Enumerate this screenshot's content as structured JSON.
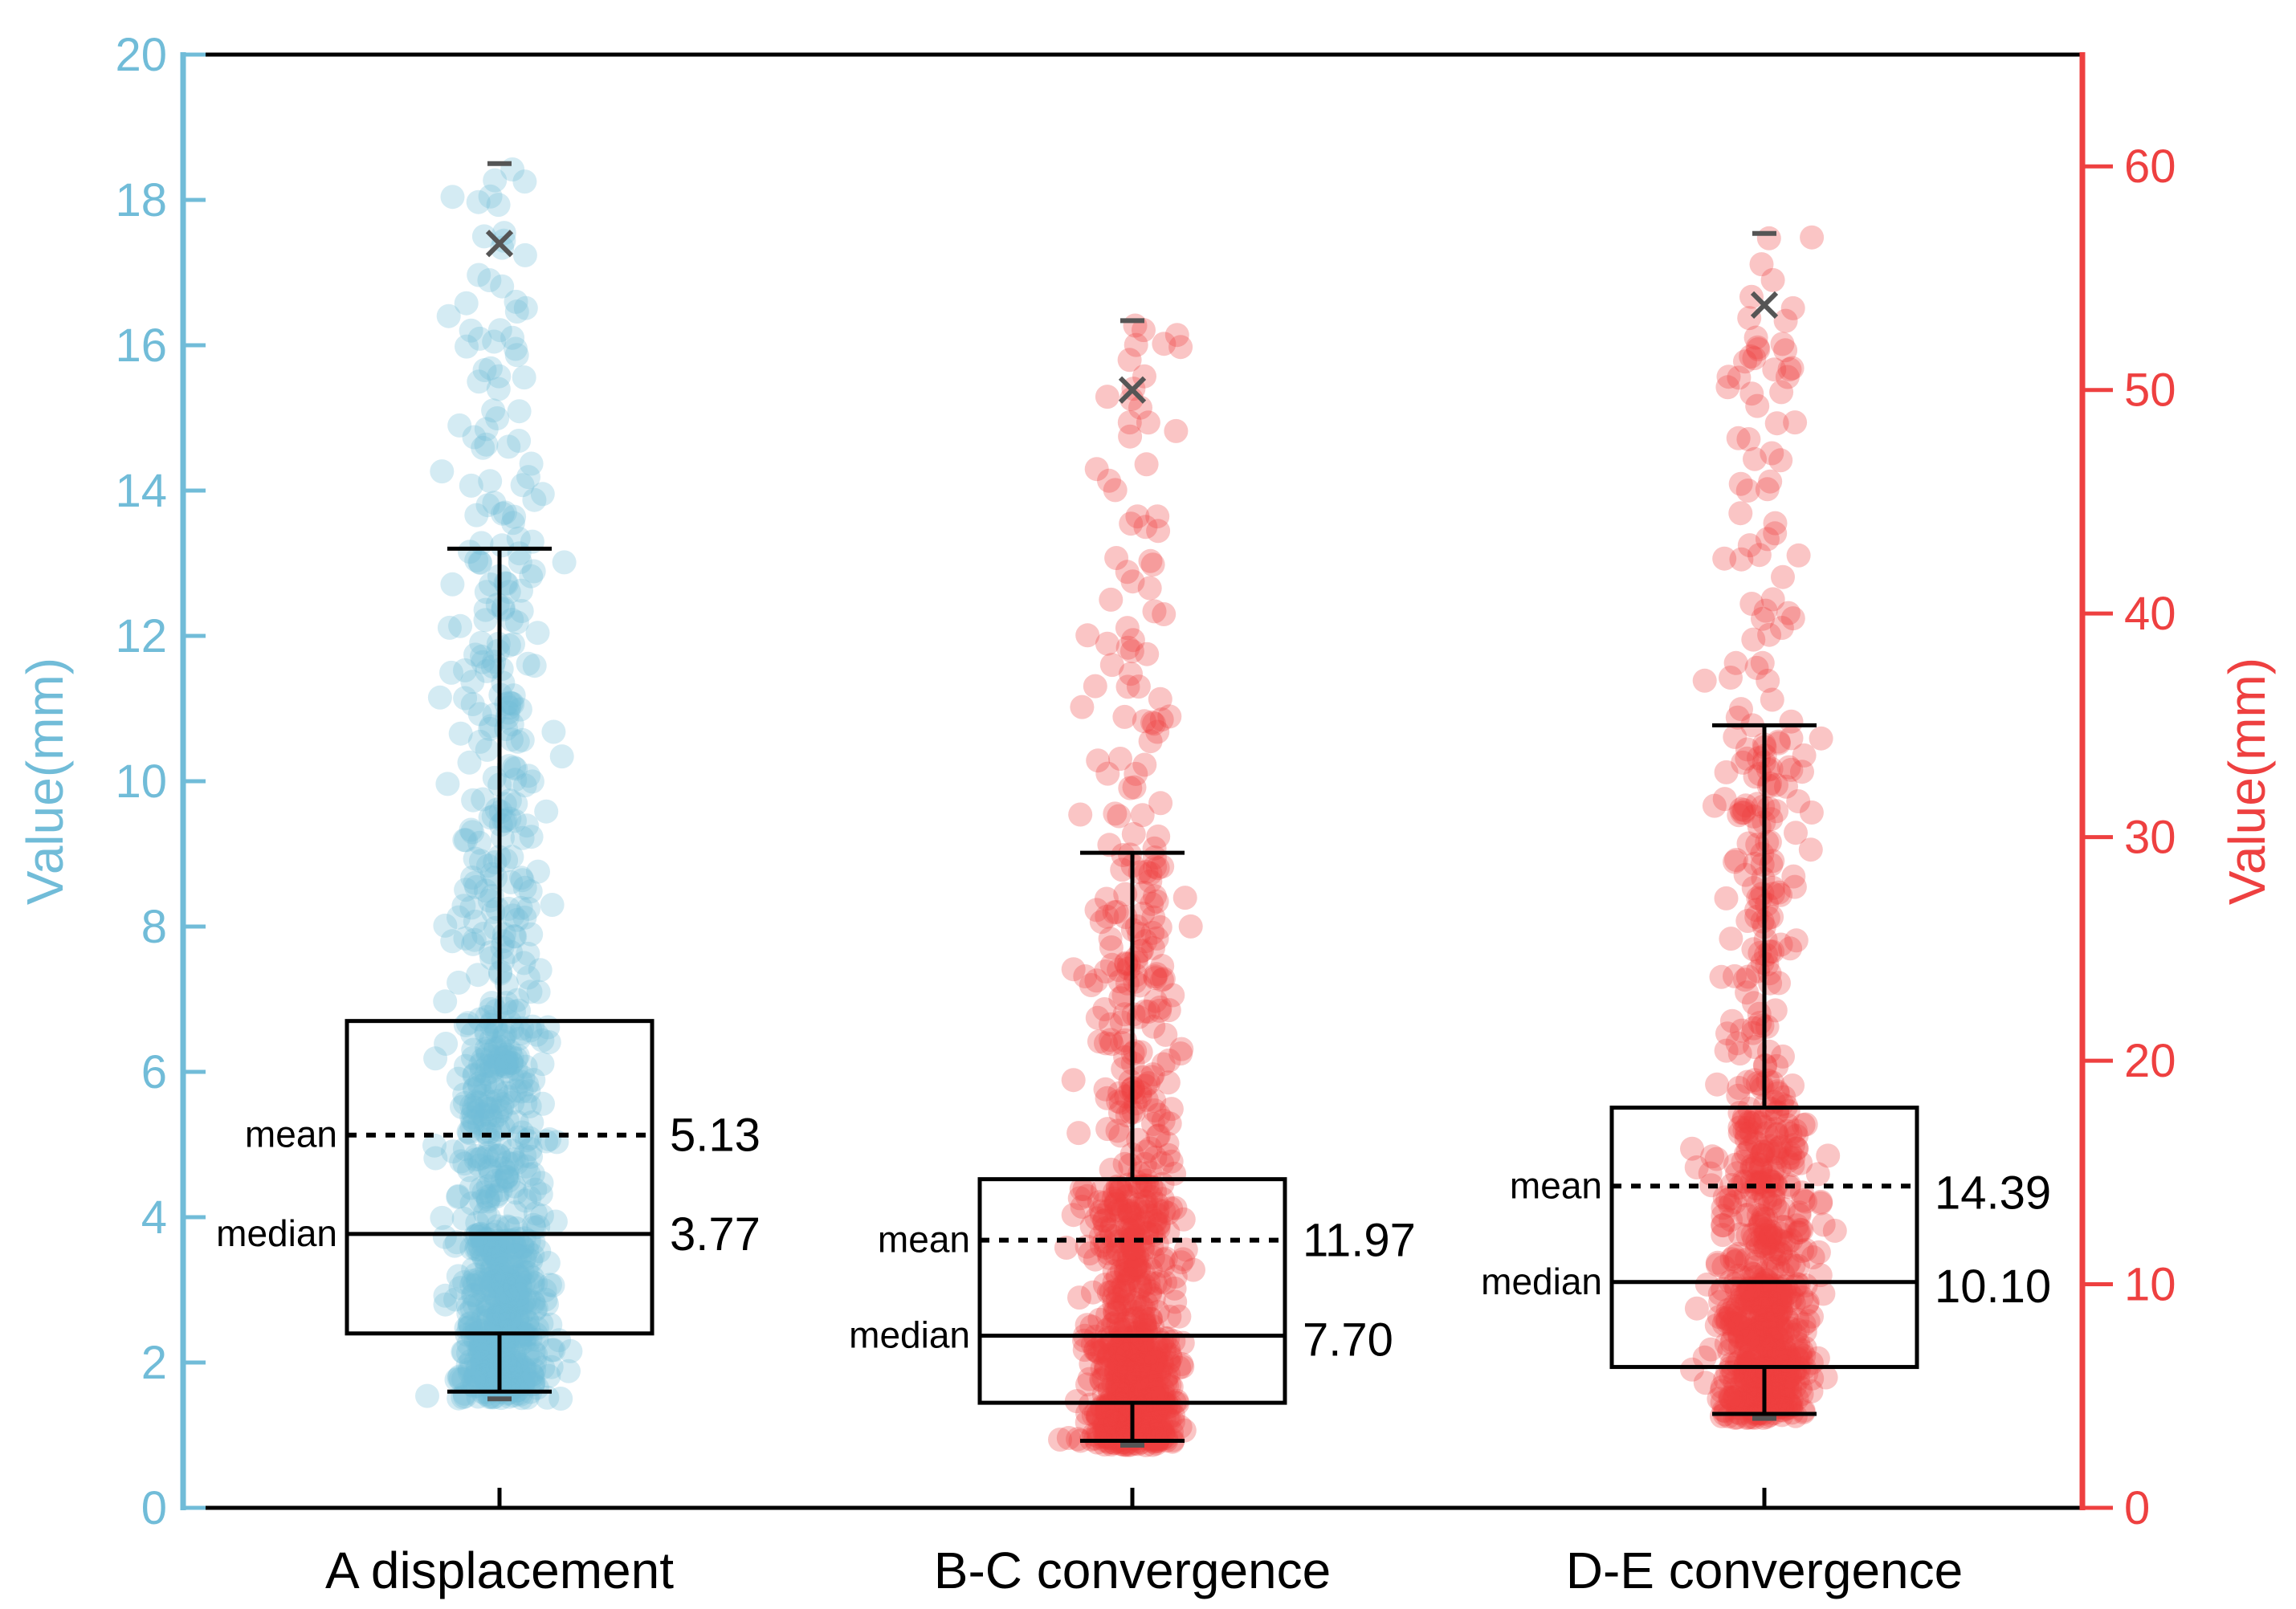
{
  "chart_data": {
    "type": "box",
    "categories": [
      "A displacement",
      "B-C convergence",
      "D-E convergence"
    ],
    "left_axis": {
      "label": "Value(mm)",
      "range": [
        0,
        20
      ],
      "ticks": [
        0,
        2,
        4,
        6,
        8,
        10,
        12,
        14,
        16,
        18,
        20
      ],
      "color": "#71BCD8"
    },
    "right_axis": {
      "label": "Value(mm)",
      "range": [
        0,
        65
      ],
      "ticks": [
        0,
        10,
        20,
        30,
        40,
        50,
        60
      ],
      "color": "#EE4040"
    },
    "mean_label": "mean",
    "median_label": "median",
    "series": [
      {
        "name": "A displacement",
        "axis": "left",
        "color": "#71BCD8",
        "whisker_low": 1.6,
        "q1": 2.4,
        "median": 3.77,
        "q3": 6.7,
        "whisker_high": 13.2,
        "mean": 5.13,
        "mean_text": "5.13",
        "median_text": "3.77",
        "p99": 17.4,
        "max": 18.5,
        "min": 1.5,
        "n_points": 900
      },
      {
        "name": "B-C convergence",
        "axis": "right",
        "color": "#EE4040",
        "whisker_low": 3.0,
        "q1": 4.7,
        "median": 7.7,
        "q3": 14.7,
        "whisker_high": 29.3,
        "mean": 11.97,
        "mean_text": "11.97",
        "median_text": "7.70",
        "p99": 50.0,
        "max": 53.1,
        "min": 2.8,
        "n_points": 900
      },
      {
        "name": "D-E convergence",
        "axis": "right",
        "color": "#EE4040",
        "whisker_low": 4.2,
        "q1": 6.3,
        "median": 10.1,
        "q3": 17.9,
        "whisker_high": 35.0,
        "mean": 14.39,
        "mean_text": "14.39",
        "median_text": "10.10",
        "p99": 53.8,
        "max": 57.0,
        "min": 4.0,
        "n_points": 900
      }
    ]
  }
}
